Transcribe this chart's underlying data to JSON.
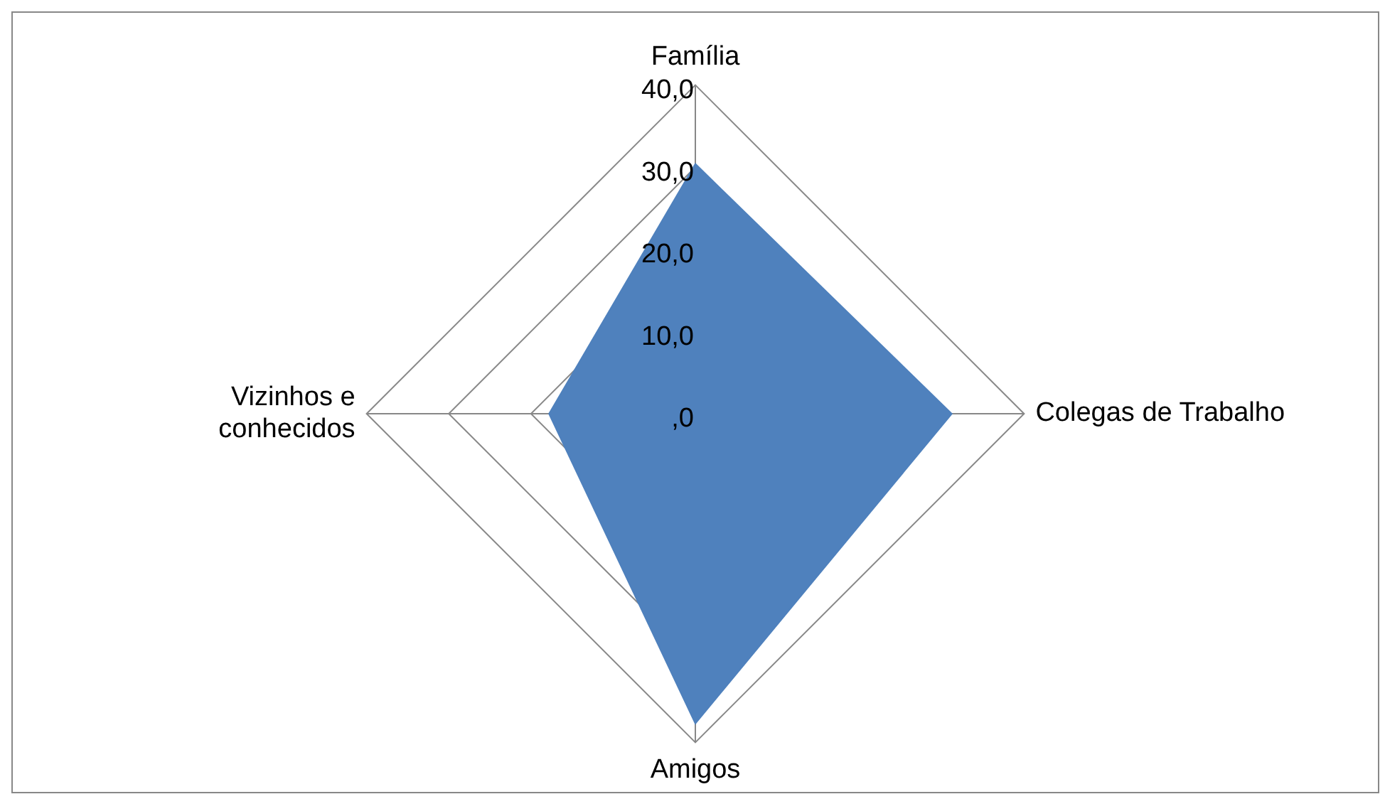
{
  "chart_data": {
    "type": "radar",
    "categories": [
      "Família",
      "Colegas de Trabalho",
      "Amigos",
      "Vizinhos e\nconhecidos"
    ],
    "series": [
      {
        "color": "#4f81bd",
        "values": [
          30.4,
          31.2,
          37.7,
          17.8
        ]
      }
    ],
    "ylim": [
      0,
      40
    ],
    "yticks": [
      {
        "value": 0,
        "label": ",0"
      },
      {
        "value": 10,
        "label": "10,0"
      },
      {
        "value": 20,
        "label": "20,0"
      },
      {
        "value": 30,
        "label": "30,0"
      },
      {
        "value": 40,
        "label": "40,0"
      }
    ],
    "grid": true,
    "legend": false,
    "marker": "none"
  }
}
